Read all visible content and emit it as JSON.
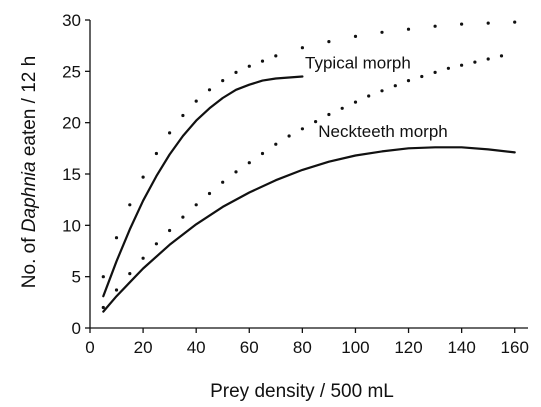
{
  "chart_data": {
    "type": "line",
    "title": "",
    "xlabel": "Prey density / 500 mL",
    "ylabel_parts": [
      "No. of ",
      "Daphnia",
      " eaten / 12 h"
    ],
    "xlim": [
      0,
      165
    ],
    "ylim": [
      0,
      30
    ],
    "xticks": [
      0,
      20,
      40,
      60,
      80,
      100,
      120,
      140,
      160
    ],
    "yticks": [
      0,
      5,
      10,
      15,
      20,
      25,
      30
    ],
    "grid": false,
    "legend": "none",
    "series": [
      {
        "name": "Typical morph",
        "style": "solid",
        "x": [
          5,
          10,
          15,
          20,
          25,
          30,
          35,
          40,
          45,
          50,
          55,
          60,
          65,
          70,
          75,
          80
        ],
        "y": [
          3.1,
          6.5,
          9.6,
          12.4,
          14.8,
          16.9,
          18.7,
          20.2,
          21.4,
          22.4,
          23.2,
          23.7,
          24.1,
          24.3,
          24.4,
          24.5
        ]
      },
      {
        "name": "",
        "style": "dotted",
        "x": [
          5,
          10,
          15,
          20,
          25,
          30,
          35,
          40,
          45,
          50,
          55,
          60,
          65,
          70,
          80,
          90,
          100,
          110,
          120,
          130,
          140,
          150,
          160
        ],
        "y": [
          5.0,
          8.8,
          12.0,
          14.7,
          17.0,
          19.0,
          20.7,
          22.1,
          23.2,
          24.1,
          24.9,
          25.5,
          26.0,
          26.5,
          27.3,
          27.9,
          28.4,
          28.8,
          29.1,
          29.4,
          29.6,
          29.7,
          29.8
        ]
      },
      {
        "name": "Neckteeth morph",
        "style": "solid",
        "x": [
          5,
          10,
          20,
          30,
          40,
          50,
          60,
          70,
          80,
          90,
          100,
          110,
          120,
          130,
          140,
          150,
          160
        ],
        "y": [
          1.6,
          3.1,
          5.8,
          8.1,
          10.1,
          11.8,
          13.2,
          14.4,
          15.4,
          16.2,
          16.8,
          17.2,
          17.5,
          17.6,
          17.6,
          17.4,
          17.1
        ]
      },
      {
        "name": "",
        "style": "dotted",
        "x": [
          5,
          10,
          15,
          20,
          25,
          30,
          35,
          40,
          45,
          50,
          55,
          60,
          65,
          70,
          75,
          80,
          85,
          90,
          95,
          100,
          105,
          110,
          115,
          120,
          125,
          130,
          135,
          140,
          145,
          150,
          155
        ],
        "y": [
          2.0,
          3.7,
          5.3,
          6.8,
          8.2,
          9.5,
          10.8,
          12.0,
          13.1,
          14.2,
          15.2,
          16.1,
          17.0,
          17.9,
          18.7,
          19.4,
          20.1,
          20.8,
          21.4,
          22.0,
          22.6,
          23.1,
          23.6,
          24.1,
          24.5,
          24.9,
          25.3,
          25.6,
          25.9,
          26.2,
          26.5
        ]
      }
    ],
    "annotations": [
      {
        "text": "Typical morph",
        "x": 81,
        "y": 25.3
      },
      {
        "text": "Neckteeth morph",
        "x": 86,
        "y": 18.6
      }
    ]
  }
}
